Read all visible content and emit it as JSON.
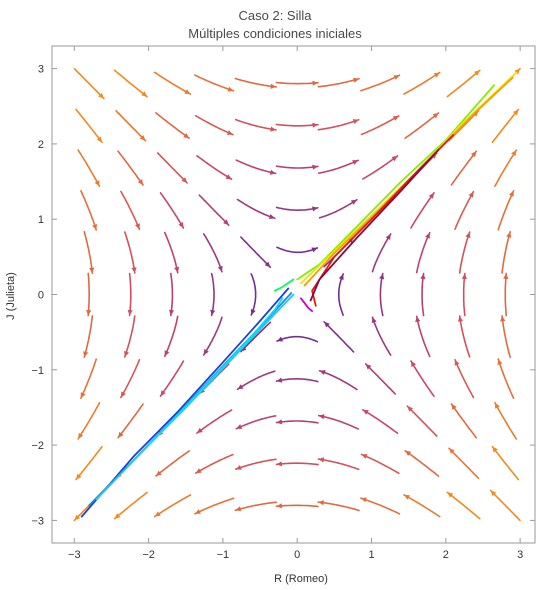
{
  "chart_data": {
    "type": "streamplot",
    "title": "Caso 2: Silla",
    "subtitle": "Múltiples condiciones iniciales",
    "xlabel": "R (Romeo)",
    "ylabel": "J (Julieta)",
    "xlim": [
      -3.3,
      3.2
    ],
    "ylim": [
      -3.3,
      3.3
    ],
    "xticks": [
      -3,
      -2,
      -1,
      0,
      1,
      2,
      3
    ],
    "yticks": [
      -3,
      -2,
      -1,
      0,
      1,
      2,
      3
    ],
    "field": {
      "dR": "J",
      "dJ": "R"
    },
    "colors": {
      "far": "#f28a1e",
      "mid": "#c8466a",
      "near": "#6a2a98"
    },
    "trajectories": [
      {
        "color": "#1f3fd6",
        "points": [
          [
            -0.12,
            0.08
          ],
          [
            -0.5,
            -0.35
          ],
          [
            -1.0,
            -0.9
          ],
          [
            -1.6,
            -1.55
          ],
          [
            -2.2,
            -2.15
          ],
          [
            -2.9,
            -2.95
          ]
        ]
      },
      {
        "color": "#1f8ce0",
        "points": [
          [
            -0.08,
            0.02
          ],
          [
            -0.45,
            -0.38
          ],
          [
            -1.0,
            -0.95
          ],
          [
            -1.6,
            -1.58
          ],
          [
            -2.2,
            -2.2
          ],
          [
            -2.8,
            -2.8
          ]
        ]
      },
      {
        "color": "#23c8e6",
        "points": [
          [
            -0.05,
            0.0
          ],
          [
            -0.4,
            -0.36
          ],
          [
            -0.9,
            -0.88
          ],
          [
            -1.5,
            -1.5
          ],
          [
            -2.1,
            -2.1
          ],
          [
            -2.7,
            -2.72
          ]
        ]
      },
      {
        "color": "#00e0ff",
        "points": [
          [
            -0.2,
            -0.05
          ],
          [
            -0.3,
            -0.2
          ],
          [
            -0.7,
            -0.65
          ],
          [
            -1.3,
            -1.28
          ],
          [
            -2.0,
            -2.0
          ]
        ]
      },
      {
        "color": "#00ff5a",
        "points": [
          [
            -0.05,
            0.2
          ],
          [
            -0.2,
            0.1
          ],
          [
            -0.3,
            0.05
          ]
        ]
      },
      {
        "color": "#80f000",
        "points": [
          [
            0.0,
            0.2
          ],
          [
            0.3,
            0.4
          ],
          [
            0.8,
            0.9
          ],
          [
            1.4,
            1.5
          ],
          [
            2.0,
            2.05
          ],
          [
            2.65,
            2.78
          ]
        ]
      },
      {
        "color": "#f2e20a",
        "points": [
          [
            0.05,
            0.15
          ],
          [
            0.4,
            0.48
          ],
          [
            1.0,
            1.05
          ],
          [
            1.6,
            1.62
          ],
          [
            2.2,
            2.25
          ],
          [
            2.95,
            2.95
          ]
        ]
      },
      {
        "color": "#f2a000",
        "points": [
          [
            0.1,
            0.12
          ],
          [
            0.5,
            0.55
          ],
          [
            1.1,
            1.12
          ],
          [
            1.7,
            1.72
          ],
          [
            2.4,
            2.42
          ],
          [
            2.9,
            2.88
          ]
        ]
      },
      {
        "color": "#e01a10",
        "points": [
          [
            0.25,
            -0.15
          ],
          [
            0.2,
            0.05
          ],
          [
            0.5,
            0.5
          ],
          [
            1.0,
            1.0
          ],
          [
            1.6,
            1.62
          ],
          [
            2.1,
            2.12
          ]
        ]
      },
      {
        "color": "#8a0a3a",
        "points": [
          [
            0.18,
            -0.08
          ],
          [
            0.3,
            0.2
          ],
          [
            0.8,
            0.75
          ],
          [
            1.4,
            1.38
          ],
          [
            1.9,
            1.92
          ]
        ]
      },
      {
        "color": "#c800c8",
        "points": [
          [
            0.05,
            -0.05
          ],
          [
            0.15,
            -0.18
          ],
          [
            0.2,
            -0.22
          ]
        ]
      }
    ]
  }
}
